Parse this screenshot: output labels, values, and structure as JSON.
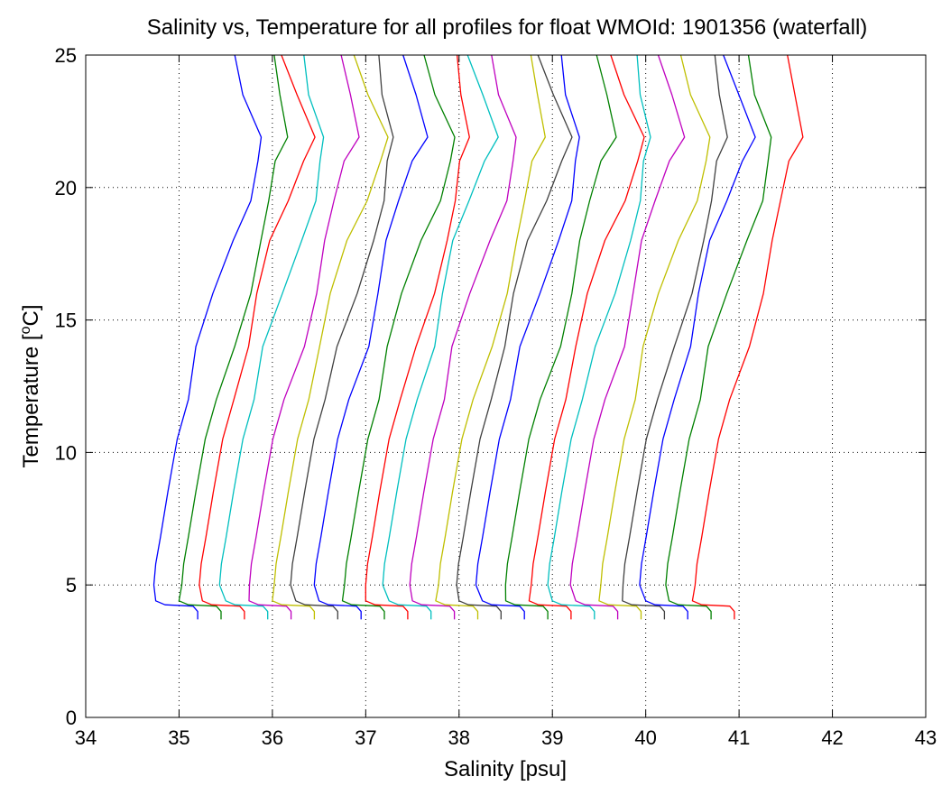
{
  "chart_data": {
    "type": "line",
    "title": "Salinity vs, Temperature for all profiles for float WMOId: 1901356 (waterfall)",
    "xlabel": "Salinity [psu]",
    "ylabel_main": "Temperature [",
    "ylabel_sup": "o",
    "ylabel_tail": "C]",
    "xlim": [
      34,
      43
    ],
    "ylim": [
      0,
      25
    ],
    "xticks": [
      34,
      35,
      36,
      37,
      38,
      39,
      40,
      41,
      42,
      43
    ],
    "yticks": [
      0,
      5,
      10,
      15,
      20,
      25
    ],
    "grid": true,
    "waterfall_offset_psu": 0.25,
    "colors": [
      "#0000ff",
      "#008000",
      "#ff0000",
      "#00bfbf",
      "#bf00bf",
      "#bfbf00",
      "#404040"
    ],
    "series_count": 24
  }
}
